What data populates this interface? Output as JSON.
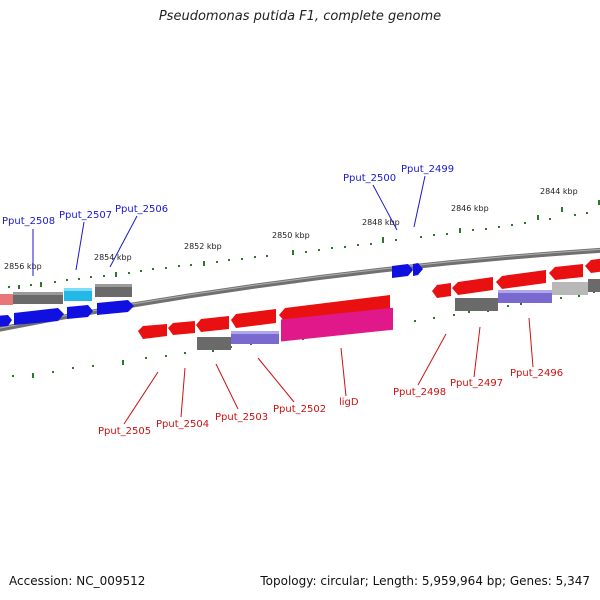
{
  "title": "Pseudomonas putida F1, complete genome",
  "footer": {
    "accession": "Accession: NC_009512",
    "stats": "Topology: circular; Length: 5,959,964 bp; Genes: 5,347"
  },
  "colors": {
    "forward_gene": "#1010e0",
    "reverse_gene": "#e81010",
    "forward_label": "#1a1acc",
    "reverse_label": "#cc1111",
    "ruler_ticks": "#2a7a2a",
    "backbone": "#808080",
    "highlight_cyan": "#22b8e8",
    "highlight_magenta": "#e0188a",
    "highlight_purple": "#7a6ad0",
    "highlight_pink": "#e87878"
  },
  "ruler_labels": [
    "2856 kbp",
    "2854 kbp",
    "2852 kbp",
    "2850 kbp",
    "2848 kbp",
    "2846 kbp",
    "2844 kbp"
  ],
  "gene_labels_forward": [
    "Pput_2508",
    "Pput_2507",
    "Pput_2506",
    "Pput_2500",
    "Pput_2499"
  ],
  "gene_labels_reverse": [
    "Pput_2505",
    "Pput_2504",
    "Pput_2503",
    "Pput_2502",
    "ligD",
    "Pput_2498",
    "Pput_2497",
    "Pput_2496"
  ]
}
